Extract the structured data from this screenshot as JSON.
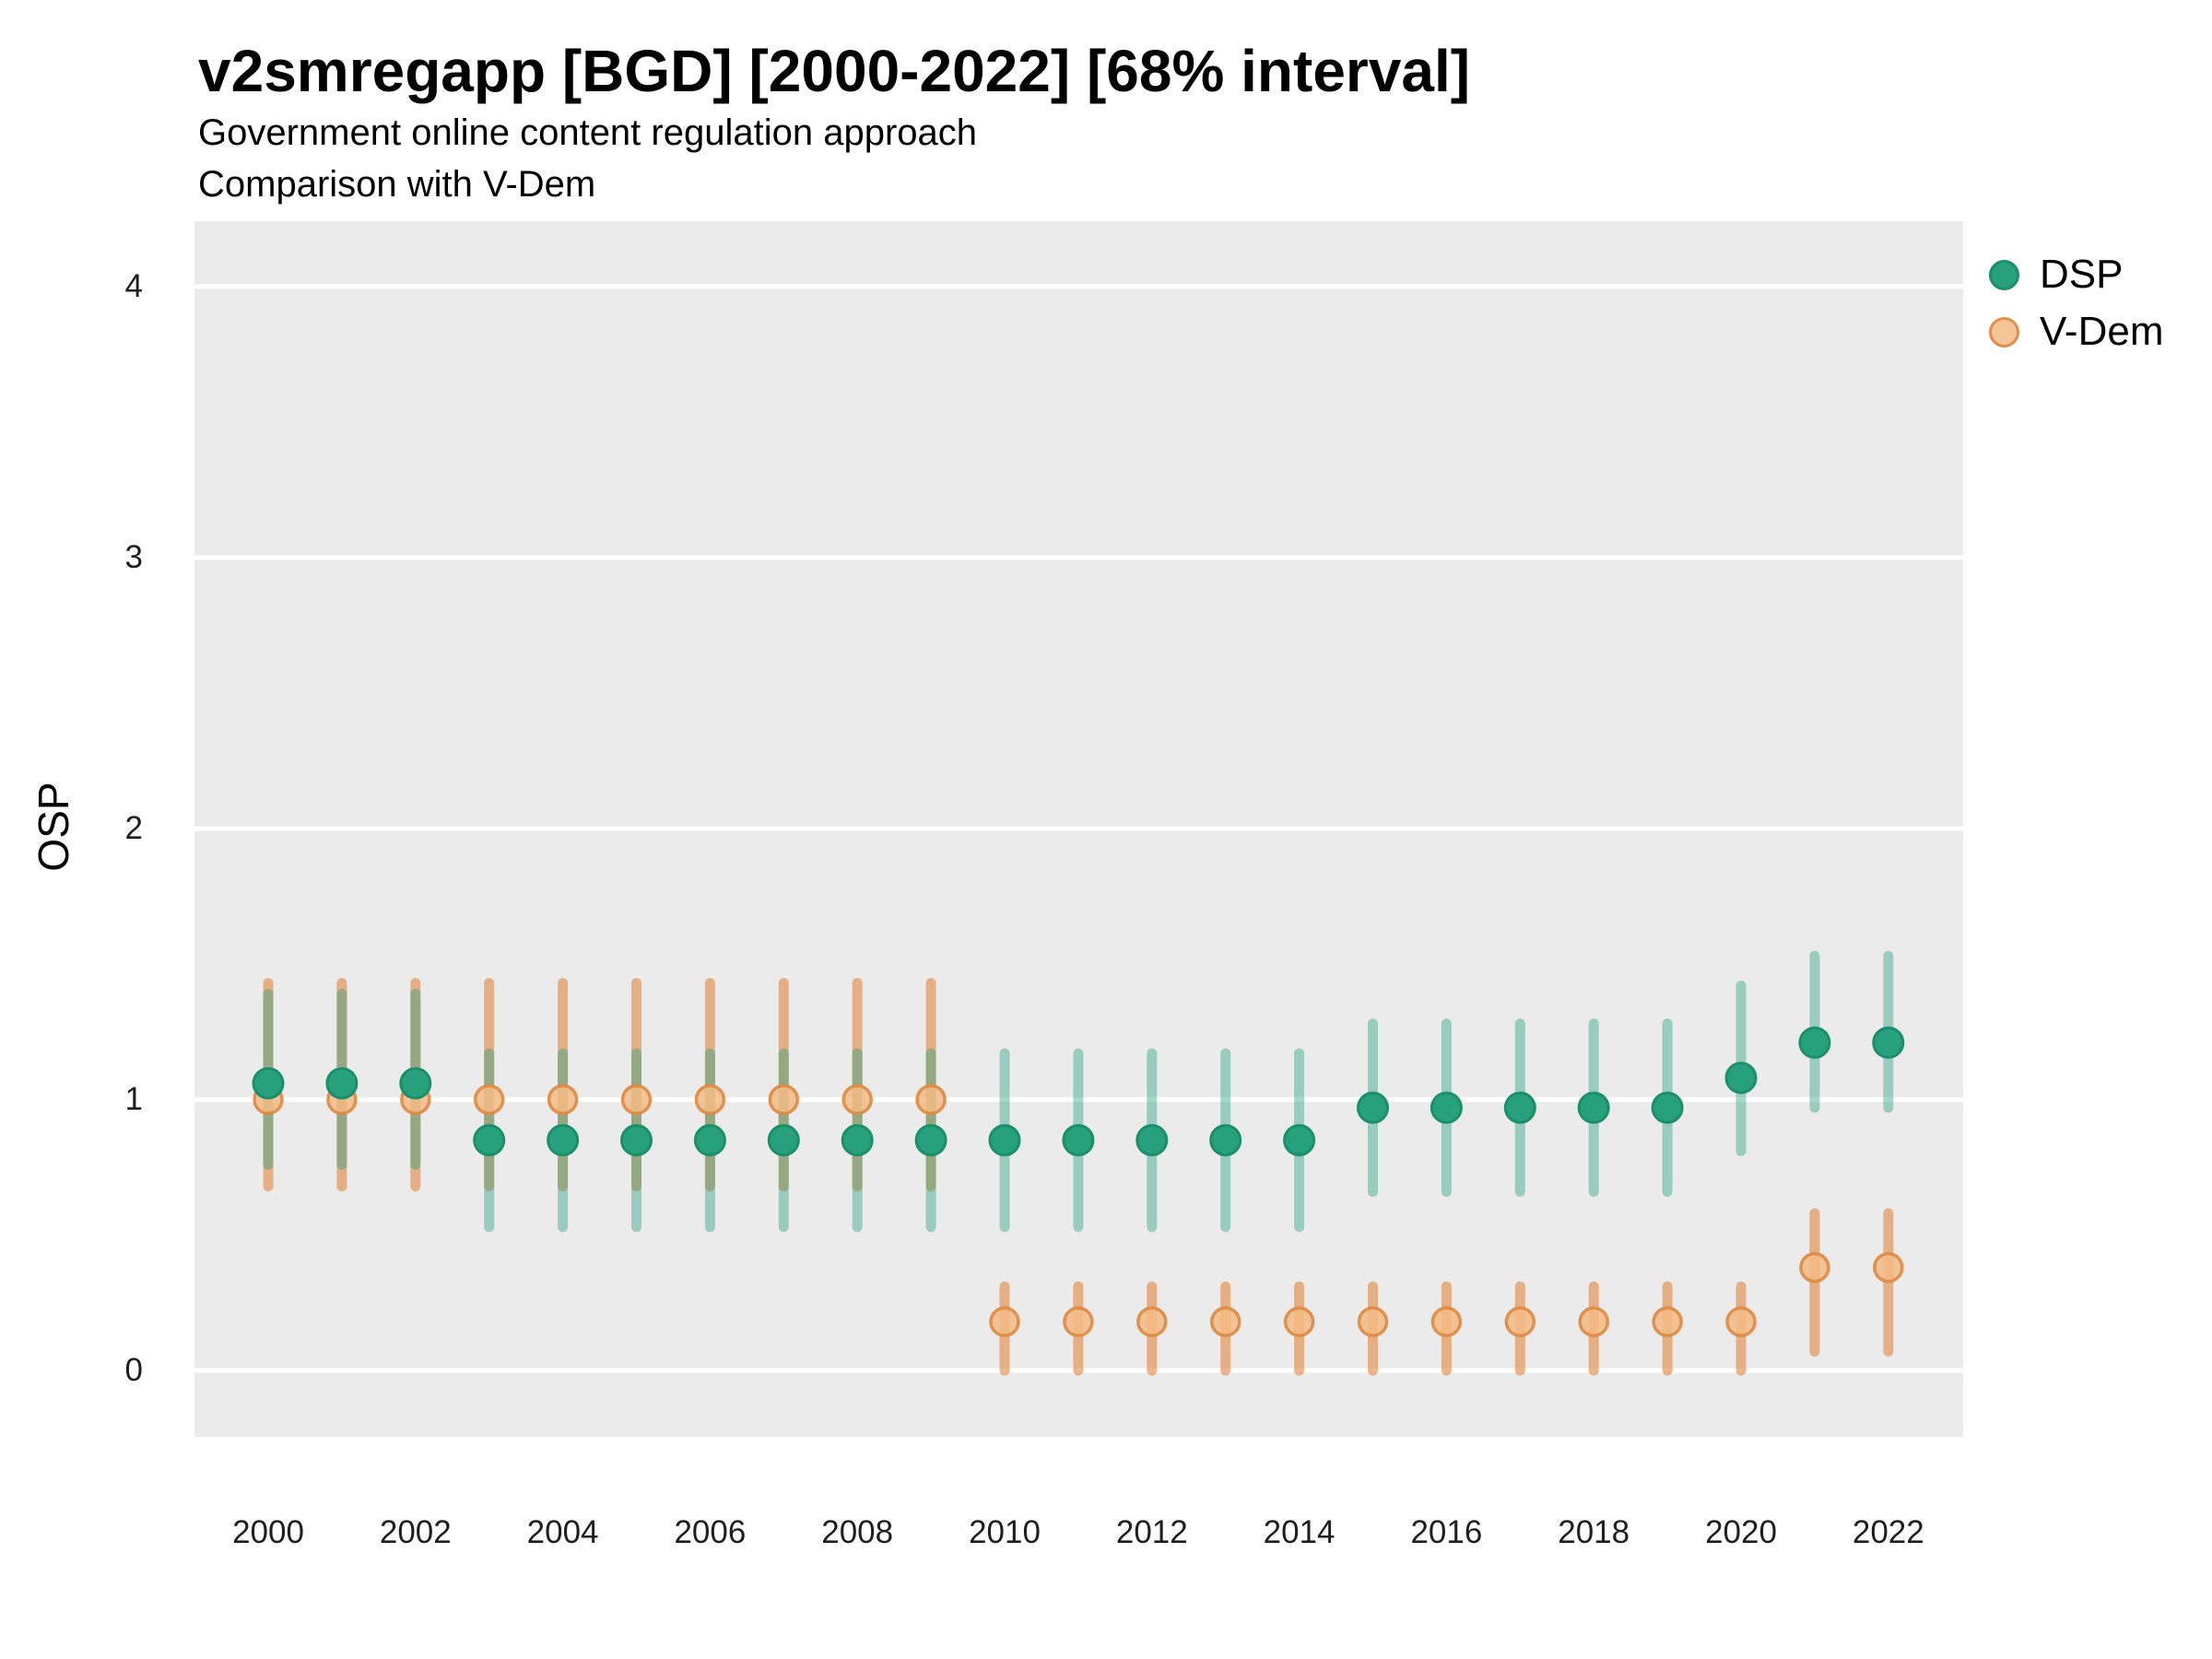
{
  "title": "v2smregapp [BGD] [2000-2022] [68% interval]",
  "subtitle_line1": "Government online content regulation approach",
  "subtitle_line2": "Comparison with V-Dem",
  "y_axis": {
    "title": "OSP",
    "ticks": [
      0,
      1,
      2,
      3,
      4
    ],
    "range": [
      -0.25,
      4.24
    ]
  },
  "x_axis": {
    "ticks": [
      2000,
      2002,
      2004,
      2006,
      2008,
      2010,
      2012,
      2014,
      2016,
      2018,
      2020,
      2022
    ],
    "range": [
      1999,
      2023
    ]
  },
  "legend": {
    "items": [
      {
        "label": "DSP",
        "color": "#26a17b"
      },
      {
        "label": "V-Dem",
        "color": "#f4bb85"
      }
    ]
  },
  "colors": {
    "dsp_point": "#26a17b",
    "dsp_point_stroke": "#1b8f6a",
    "dsp_bar": "rgba(38,161,123,0.42)",
    "vdem_point_fill": "rgba(244,187,133,0.85)",
    "vdem_point_stroke": "rgba(222,138,65,0.9)",
    "vdem_bar": "rgba(226,134,62,0.6)",
    "panel_bg": "#ebebeb",
    "gridline": "#ffffff",
    "text": "#000000",
    "tick_text": "#1f1f1f"
  },
  "chart_data": {
    "type": "scatter",
    "mark": "pointrange",
    "title": "v2smregapp [BGD] [2000-2022] [68% interval]",
    "subtitle": "Government online content regulation approach — Comparison with V-Dem",
    "xlabel": "",
    "ylabel": "OSP",
    "interval": "68%",
    "ylim": [
      -0.25,
      4.24
    ],
    "xlim": [
      1999,
      2023
    ],
    "grid": "major-horizontal-white-on-gray",
    "legend_position": "right-top",
    "x": [
      2000,
      2001,
      2002,
      2003,
      2004,
      2005,
      2006,
      2007,
      2008,
      2009,
      2010,
      2011,
      2012,
      2013,
      2014,
      2015,
      2016,
      2017,
      2018,
      2019,
      2020,
      2021,
      2022
    ],
    "series": [
      {
        "name": "DSP",
        "estimates": [
          1.06,
          1.06,
          1.06,
          0.85,
          0.85,
          0.85,
          0.85,
          0.85,
          0.85,
          0.85,
          0.85,
          0.85,
          0.85,
          0.85,
          0.85,
          0.97,
          0.97,
          0.97,
          0.97,
          0.97,
          1.08,
          1.21,
          1.21
        ],
        "lower": [
          0.76,
          0.76,
          0.76,
          0.53,
          0.53,
          0.53,
          0.53,
          0.53,
          0.53,
          0.53,
          0.53,
          0.53,
          0.53,
          0.53,
          0.53,
          0.66,
          0.66,
          0.66,
          0.66,
          0.66,
          0.81,
          0.97,
          0.97
        ],
        "upper": [
          1.39,
          1.39,
          1.39,
          1.17,
          1.17,
          1.17,
          1.17,
          1.17,
          1.17,
          1.17,
          1.17,
          1.17,
          1.17,
          1.17,
          1.17,
          1.28,
          1.28,
          1.28,
          1.28,
          1.28,
          1.42,
          1.53,
          1.53
        ]
      },
      {
        "name": "V-Dem",
        "estimates": [
          1.0,
          1.0,
          1.0,
          1.0,
          1.0,
          1.0,
          1.0,
          1.0,
          1.0,
          1.0,
          0.18,
          0.18,
          0.18,
          0.18,
          0.18,
          0.18,
          0.18,
          0.18,
          0.18,
          0.18,
          0.18,
          0.38,
          0.38
        ],
        "lower": [
          0.68,
          0.68,
          0.68,
          0.68,
          0.68,
          0.68,
          0.68,
          0.68,
          0.68,
          0.68,
          0.0,
          0.0,
          0.0,
          0.0,
          0.0,
          0.0,
          0.0,
          0.0,
          0.0,
          0.0,
          0.0,
          0.07,
          0.07
        ],
        "upper": [
          1.43,
          1.43,
          1.43,
          1.43,
          1.43,
          1.43,
          1.43,
          1.43,
          1.43,
          1.43,
          0.31,
          0.31,
          0.31,
          0.31,
          0.31,
          0.31,
          0.31,
          0.31,
          0.31,
          0.31,
          0.31,
          0.58,
          0.58
        ]
      }
    ]
  }
}
